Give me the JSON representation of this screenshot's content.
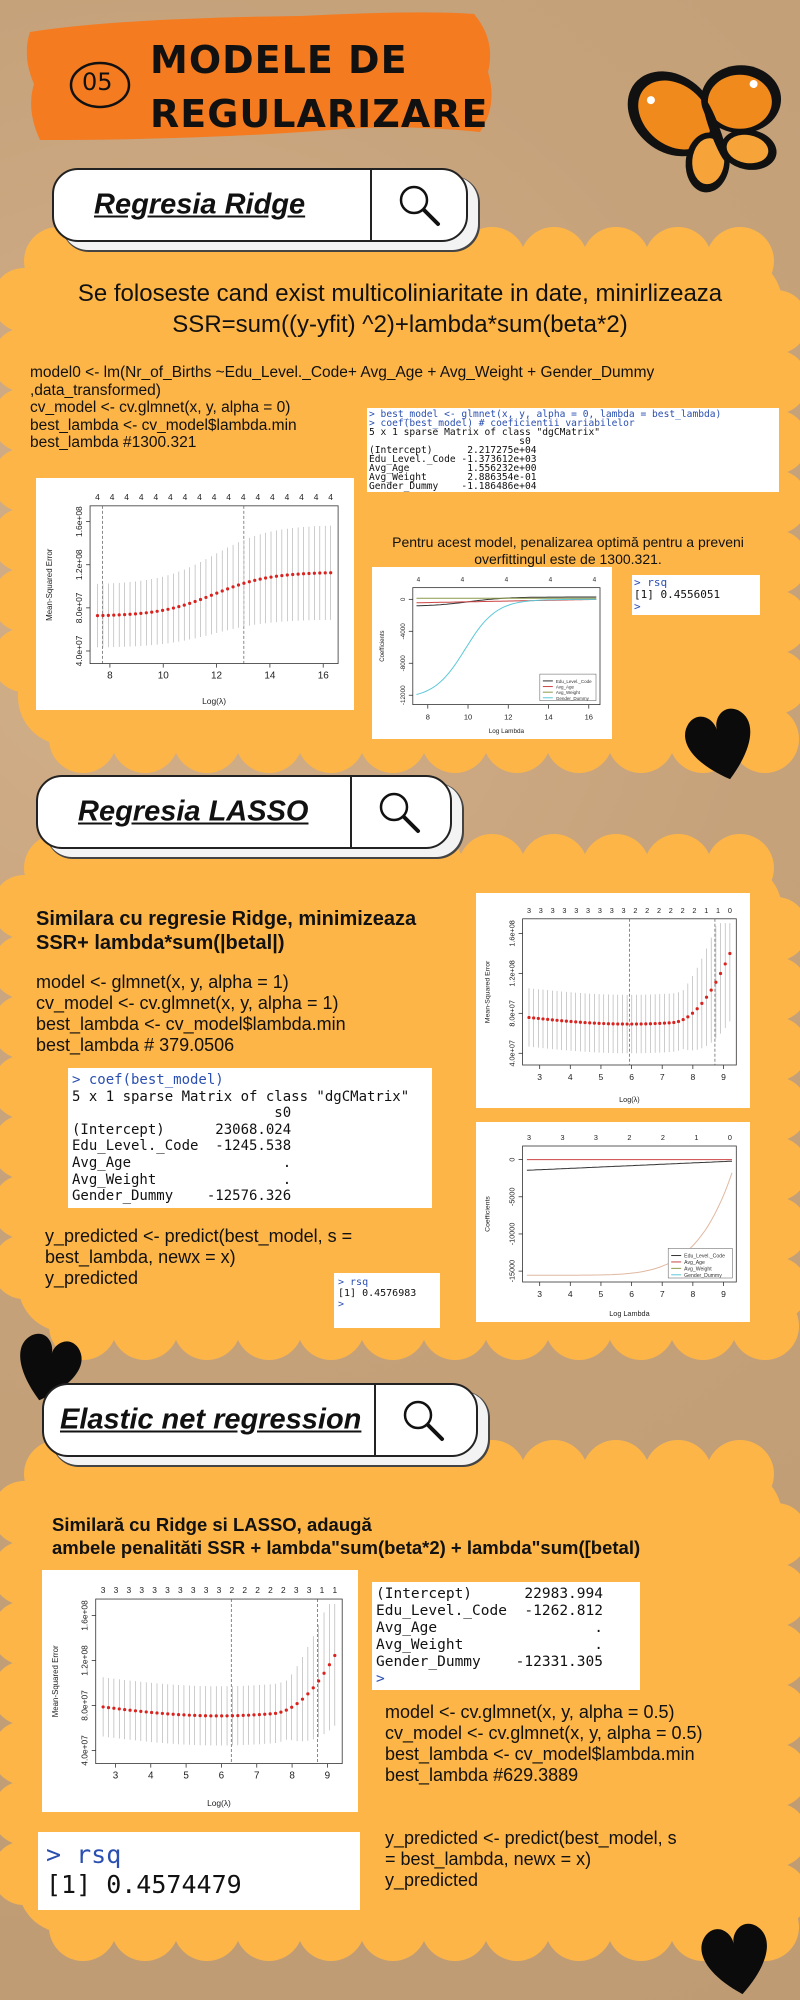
{
  "header": {
    "number": "05",
    "title_lines": [
      "MODELE DE",
      "REGULARIZARE"
    ]
  },
  "sections": [
    {
      "title": "Regresia Ridge",
      "description_lines": [
        "Se foloseste cand exist multicoliniaritate in date, minirlizeaza",
        "SSR=sum((y-yfit) ^2)+lambda*sum(beta*2)"
      ],
      "code_lines": [
        "model0 <- lm(Nr_of_Births ~Edu_Level._Code+ Avg_Age + Avg_Weight + Gender_Dummy",
        ",data_transformed)",
        "cv_model <- cv.glmnet(x, y, alpha = 0)",
        "best_lambda <- cv_model$lambda.min",
        "best_lambda  #1300.321"
      ],
      "output_lines": [
        "> best_model <- glmnet(x, y, alpha = 0, lambda = best_lambda)",
        "> coef(best_model) # coeficientii variabilelor",
        "5 x 1 sparse Matrix of class \"dgCMatrix\"",
        "                          s0",
        "(Intercept)      2.217275e+04",
        "Edu_Level._Code -1.373612e+03",
        "Avg_Age          1.556232e+00",
        "Avg_Weight       2.886354e-01",
        "Gender_Dummy    -1.186486e+04"
      ],
      "note_lines": [
        "Pentru acest model, penalizarea optimă pentru a preveni",
        "overfittingul este de 1300.321."
      ],
      "rsq_lines": [
        "> rsq",
        "[1] 0.4556051",
        ">"
      ],
      "plots": [
        {
          "top_labels": [
            "4",
            "4",
            "4",
            "4",
            "4",
            "4",
            "4",
            "4",
            "4",
            "4",
            "4",
            "4",
            "4",
            "4",
            "4",
            "4",
            "4"
          ],
          "x_ticks": [
            "8",
            "10",
            "12",
            "14",
            "16"
          ],
          "y_ticks": [
            "4.0e+07",
            "8.0e+07",
            "1.2e+08",
            "1.6e+08"
          ],
          "x_label": "Log(λ)",
          "y_label": "Mean-Squared Error"
        },
        {
          "top_labels": [
            "4",
            "4",
            "4",
            "4",
            "4"
          ],
          "x_ticks": [
            "8",
            "10",
            "12",
            "14",
            "16"
          ],
          "y_ticks": [
            "-12000",
            "-8000",
            "-4000",
            "0"
          ],
          "x_label": "Log Lambda",
          "y_label": "Coefficients",
          "legend": [
            "Edu_Level._Code",
            "Avg_Age",
            "Avg_Weight",
            "Gender_Dummy"
          ]
        }
      ]
    },
    {
      "title": "Regresia LASSO",
      "description_lines": [
        "Similara cu regresie Ridge, minimizeaza",
        "SSR+ lambda*sum(|betal|)"
      ],
      "code_lines": [
        "model <- glmnet(x, y, alpha = 1)",
        "cv_model <- cv.glmnet(x, y, alpha = 1)",
        "best_lambda <- cv_model$lambda.min",
        "best_lambda # 379.0506"
      ],
      "output_lines": [
        "> coef(best_model)",
        "5 x 1 sparse Matrix of class \"dgCMatrix\"",
        "                        s0",
        "(Intercept)      23068.024",
        "Edu_Level._Code  -1245.538",
        "Avg_Age                  .",
        "Avg_Weight               .",
        "Gender_Dummy    -12576.326"
      ],
      "prediction_lines": [
        "y_predicted <- predict(best_model, s =",
        "best_lambda, newx = x)",
        "y_predicted"
      ],
      "rsq_lines": [
        "> rsq",
        "[1] 0.4576983",
        ">"
      ],
      "plots": [
        {
          "top_labels": [
            "3",
            "3",
            "3",
            "3",
            "3",
            "3",
            "3",
            "3",
            "3",
            "2",
            "2",
            "2",
            "2",
            "2",
            "2",
            "1",
            "1",
            "0"
          ],
          "x_ticks": [
            "3",
            "4",
            "5",
            "6",
            "7",
            "8",
            "9"
          ],
          "y_ticks": [
            "4.0e+07",
            "8.0e+07",
            "1.2e+08",
            "1.6e+08"
          ],
          "x_label": "Log(λ)",
          "y_label": "Mean-Squared Error"
        },
        {
          "top_labels": [
            "3",
            "3",
            "3",
            "2",
            "2",
            "1",
            "0"
          ],
          "x_ticks": [
            "3",
            "4",
            "5",
            "6",
            "7",
            "8",
            "9"
          ],
          "y_ticks": [
            "-15000",
            "-10000",
            "-5000",
            "0"
          ],
          "x_label": "Log Lambda",
          "y_label": "Coefficients",
          "legend": [
            "Edu_Level._Code",
            "Avg_Age",
            "Avg_Weight",
            "Gender_Dummy"
          ]
        }
      ]
    },
    {
      "title": "Elastic net regression",
      "description_lines": [
        "Similară cu Ridge si LASSO, adaugă",
        "ambele penalităti SSR + lambda\"sum(beta*2) + lambda\"sum([betal)"
      ],
      "output_lines": [
        "(Intercept)      22983.994",
        "Edu_Level._Code  -1262.812",
        "Avg_Age                  .",
        "Avg_Weight               .",
        "Gender_Dummy    -12331.305",
        ">"
      ],
      "code_lines": [
        "model <- cv.glmnet(x, y, alpha = 0.5)",
        "cv_model <- cv.glmnet(x, y, alpha = 0.5)",
        "best_lambda <- cv_model$lambda.min",
        "best_lambda #629.3889"
      ],
      "prediction_lines": [
        "y_predicted <- predict(best_model, s",
        "= best_lambda, newx = x)",
        "y_predicted"
      ],
      "rsq_lines": [
        "> rsq",
        "[1] 0.4574479"
      ],
      "plots": [
        {
          "top_labels": [
            "3",
            "3",
            "3",
            "3",
            "3",
            "3",
            "3",
            "3",
            "3",
            "3",
            "2",
            "2",
            "2",
            "2",
            "2",
            "3",
            "3",
            "1",
            "1"
          ],
          "x_ticks": [
            "3",
            "4",
            "5",
            "6",
            "7",
            "8",
            "9"
          ],
          "y_ticks": [
            "4.0e+07",
            "8.0e+07",
            "1.2e+08",
            "1.6e+08"
          ],
          "x_label": "Log(λ)",
          "y_label": "Mean-Squared Error"
        }
      ]
    }
  ]
}
